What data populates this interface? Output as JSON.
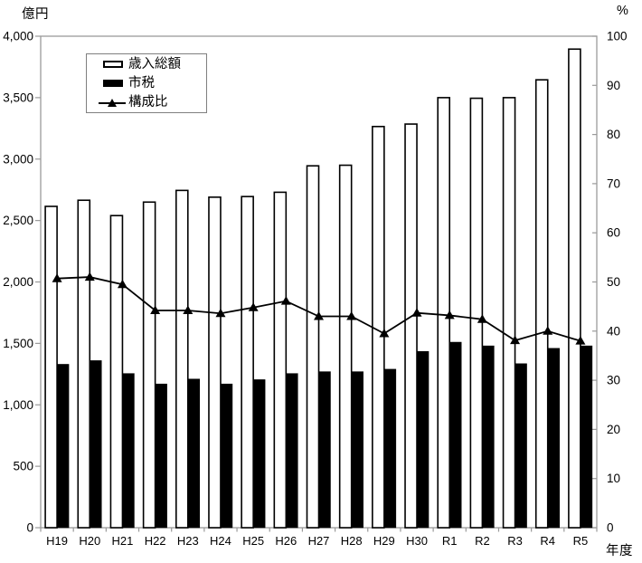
{
  "page": {
    "background": "#ffffff"
  },
  "chart_data": {
    "type": "bar",
    "subtype": "grouped-bars-with-line-overlay",
    "title": "",
    "categories": [
      "H19",
      "H20",
      "H21",
      "H22",
      "H23",
      "H24",
      "H25",
      "H26",
      "H27",
      "H28",
      "H29",
      "H30",
      "R1",
      "R2",
      "R3",
      "R4",
      "R5"
    ],
    "series": [
      {
        "name": "歳入総額",
        "type": "bar",
        "axis": "left",
        "style": "white-outlined",
        "values": [
          2615,
          2665,
          2540,
          2650,
          2745,
          2690,
          2695,
          2730,
          2945,
          2950,
          3265,
          3285,
          3500,
          3495,
          3500,
          3645,
          3895
        ]
      },
      {
        "name": "市税",
        "type": "bar",
        "axis": "left",
        "style": "black-filled",
        "values": [
          1330,
          1360,
          1255,
          1170,
          1210,
          1170,
          1205,
          1255,
          1270,
          1270,
          1290,
          1435,
          1510,
          1480,
          1335,
          1460,
          1480
        ]
      },
      {
        "name": "構成比",
        "type": "line",
        "axis": "right",
        "marker": "filled-triangle",
        "values": [
          50.7,
          51.0,
          49.5,
          44.2,
          44.2,
          43.6,
          44.8,
          46.1,
          43.0,
          43.0,
          39.5,
          43.7,
          43.2,
          42.4,
          38.1,
          40.0,
          38.0
        ]
      }
    ],
    "left_axis": {
      "title": "億円",
      "min": 0,
      "max": 4000,
      "step": 500,
      "tick_labels": [
        "0",
        "500",
        "1,000",
        "1,500",
        "2,000",
        "2,500",
        "3,000",
        "3,500",
        "4,000"
      ]
    },
    "right_axis": {
      "title": "%",
      "min": 0,
      "max": 100,
      "step": 10,
      "tick_labels": [
        "0",
        "10",
        "20",
        "30",
        "40",
        "50",
        "60",
        "70",
        "80",
        "90",
        "100"
      ]
    },
    "x_axis": {
      "title": "年度"
    },
    "legend": {
      "position": "top-left-inside",
      "items": [
        "歳入総額",
        "市税",
        "構成比"
      ]
    },
    "grid": false,
    "colors": {
      "bar_outline": "#000000",
      "bar_fill_white": "#ffffff",
      "bar_fill_black": "#000000",
      "line": "#000000",
      "frame": "#9a9a9a",
      "text": "#000000"
    }
  }
}
